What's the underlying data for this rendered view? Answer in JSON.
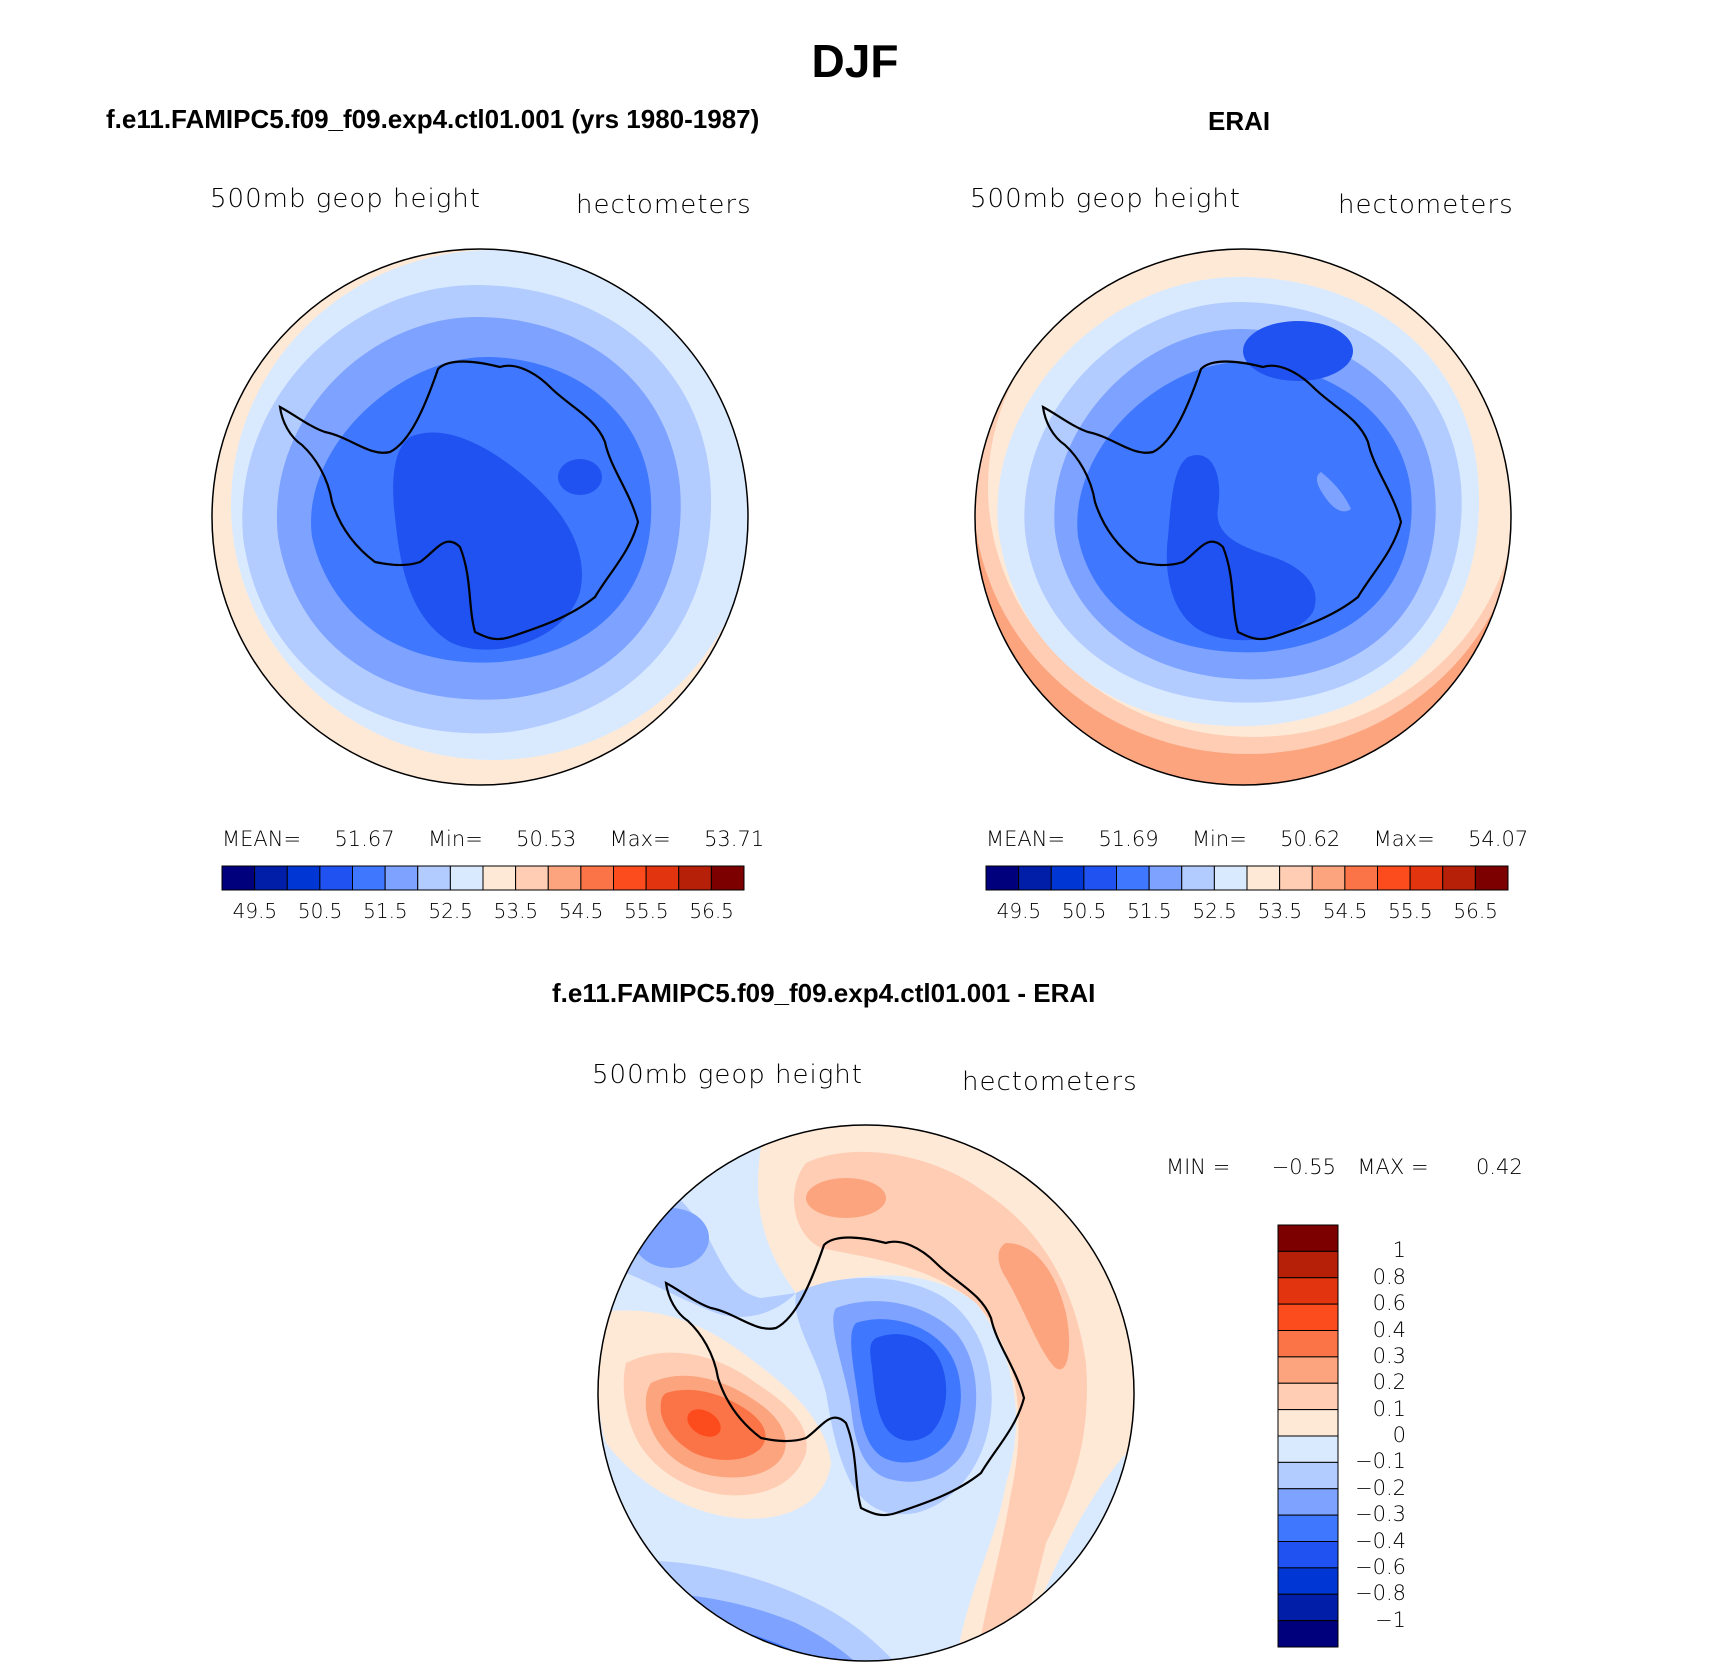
{
  "title": "DJF",
  "colors": {
    "abs_scale": [
      "#00007d",
      "#001ea8",
      "#0036d4",
      "#1f52f0",
      "#3f78ff",
      "#7ea2ff",
      "#b3ccff",
      "#d9eaff",
      "#fee9d7",
      "#fecdb4",
      "#fca47e",
      "#fb7447",
      "#fc4c1e",
      "#e33410",
      "#b72008",
      "#7d0000"
    ],
    "diff_scale": [
      "#00007d",
      "#001ea8",
      "#0036d4",
      "#1f52f0",
      "#3f78ff",
      "#7ea2ff",
      "#b3ccff",
      "#d9eaff",
      "#fee9d7",
      "#fecdb4",
      "#fca47e",
      "#fb7447",
      "#fc4c1e",
      "#e33410",
      "#b72008",
      "#7d0000"
    ]
  },
  "panels": [
    {
      "id": "model",
      "title": "f.e11.FAMIPC5.f09_f09.exp4.ctl01.001 (yrs 1980-1987)",
      "variable": "500mb geop height",
      "units": "hectometers",
      "stats": {
        "mean_label": "MEAN=",
        "mean": "51.67",
        "min_label": "Min=",
        "min": "50.53",
        "max_label": "Max=",
        "max": "53.71"
      },
      "ticks": [
        "49.5",
        "50.5",
        "51.5",
        "52.5",
        "53.5",
        "54.5",
        "55.5",
        "56.5"
      ]
    },
    {
      "id": "obs",
      "title": "ERAI",
      "variable": "500mb geop height",
      "units": "hectometers",
      "stats": {
        "mean_label": "MEAN=",
        "mean": "51.69",
        "min_label": "Min=",
        "min": "50.62",
        "max_label": "Max=",
        "max": "54.07"
      },
      "ticks": [
        "49.5",
        "50.5",
        "51.5",
        "52.5",
        "53.5",
        "54.5",
        "55.5",
        "56.5"
      ]
    }
  ],
  "diff_panel": {
    "title": "f.e11.FAMIPC5.f09_f09.exp4.ctl01.001 - ERAI",
    "variable": "500mb geop height",
    "units": "hectometers",
    "minmax": {
      "min_label": "MIN =",
      "min": "−0.55",
      "max_label": "MAX =",
      "max": "0.42"
    },
    "ticks": [
      "1",
      "0.8",
      "0.6",
      "0.4",
      "0.3",
      "0.2",
      "0.1",
      "0",
      "−0.1",
      "−0.2",
      "−0.3",
      "−0.4",
      "−0.6",
      "−0.8",
      "−1"
    ]
  }
}
